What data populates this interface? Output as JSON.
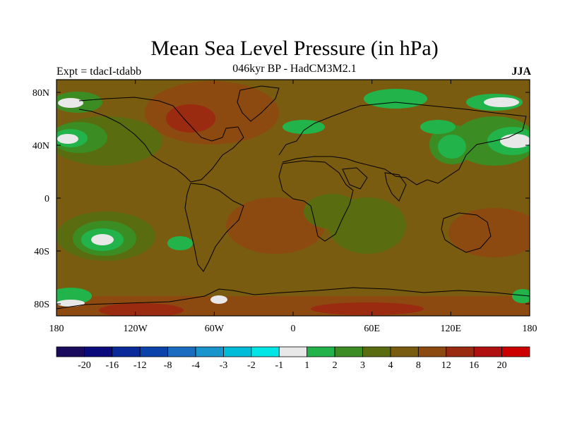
{
  "header": {
    "title": "Mean Sea Level Pressure (in hPa)",
    "subtitle": "046kyr BP - HadCM3M2.1",
    "experiment": "Expt = tdacI-tdabb",
    "season": "JJA"
  },
  "map": {
    "projection": "cylindrical-equidistant",
    "lon_range": [
      -180,
      180
    ],
    "lat_range": [
      -90,
      90
    ],
    "background_color": "#7a5c10",
    "coastline_color": "#000000",
    "lat_tick_labels": [
      "80N",
      "40N",
      "0",
      "40S",
      "80S"
    ],
    "lon_tick_labels": [
      "180",
      "120W",
      "60W",
      "0",
      "60E",
      "120E",
      "180"
    ]
  },
  "colorbar": {
    "colors": [
      "#1a0a5e",
      "#0a0a7a",
      "#0a2a9a",
      "#0a44aa",
      "#1a6cc0",
      "#1a94cc",
      "#00bcd8",
      "#00e6e6",
      "#e8e8e8",
      "#22b44a",
      "#3c8c24",
      "#5a6c10",
      "#7a5c10",
      "#8c4a10",
      "#9a2a10",
      "#b01010",
      "#cc0000"
    ],
    "labels": [
      "-20",
      "-16",
      "-12",
      "-8",
      "-4",
      "-3",
      "-2",
      "-1",
      "1",
      "2",
      "3",
      "4",
      "8",
      "12",
      "16",
      "20"
    ]
  }
}
